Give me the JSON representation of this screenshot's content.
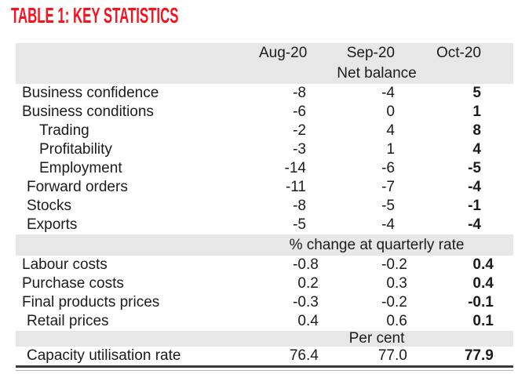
{
  "title": "TABLE 1: KEY STATISTICS",
  "colors": {
    "title_red": "#f5131f",
    "band_gray": "#e7e7e7",
    "text": "#1b1b1b",
    "bottom_rule_dark": "#3a3a3a",
    "bottom_rule_light": "#b4b4b4"
  },
  "table": {
    "columns": [
      "Aug-20",
      "Sep-20",
      "Oct-20"
    ],
    "sections": [
      {
        "band": "Net balance",
        "rows": [
          {
            "label": "Business confidence",
            "values": [
              "-8",
              "-4",
              "5"
            ]
          },
          {
            "label": "Business conditions",
            "values": [
              "-6",
              "0",
              "1"
            ]
          },
          {
            "label": "Trading",
            "values": [
              "-2",
              "4",
              "8"
            ]
          },
          {
            "label": "Profitability",
            "values": [
              "-3",
              "1",
              "4"
            ]
          },
          {
            "label": "Employment",
            "values": [
              "-14",
              "-6",
              "-5"
            ]
          },
          {
            "label": "Forward orders",
            "values": [
              "-11",
              "-7",
              "-4"
            ]
          },
          {
            "label": "Stocks",
            "values": [
              "-8",
              "-5",
              "-1"
            ]
          },
          {
            "label": "Exports",
            "values": [
              "-5",
              "-4",
              "-4"
            ]
          }
        ]
      },
      {
        "band": "% change at quarterly rate",
        "rows": [
          {
            "label": "Labour costs",
            "values": [
              "-0.8",
              "-0.2",
              "0.4"
            ]
          },
          {
            "label": "Purchase costs",
            "values": [
              "0.2",
              "0.3",
              "0.4"
            ]
          },
          {
            "label": "Final products prices",
            "values": [
              "-0.3",
              "-0.2",
              "-0.1"
            ]
          },
          {
            "label": "Retail prices",
            "values": [
              "0.4",
              "0.6",
              "0.1"
            ]
          }
        ]
      },
      {
        "band": "Per cent",
        "rows": [
          {
            "label": "Capacity utilisation rate",
            "values": [
              "76.4",
              "77.0",
              "77.9"
            ]
          }
        ]
      }
    ]
  }
}
